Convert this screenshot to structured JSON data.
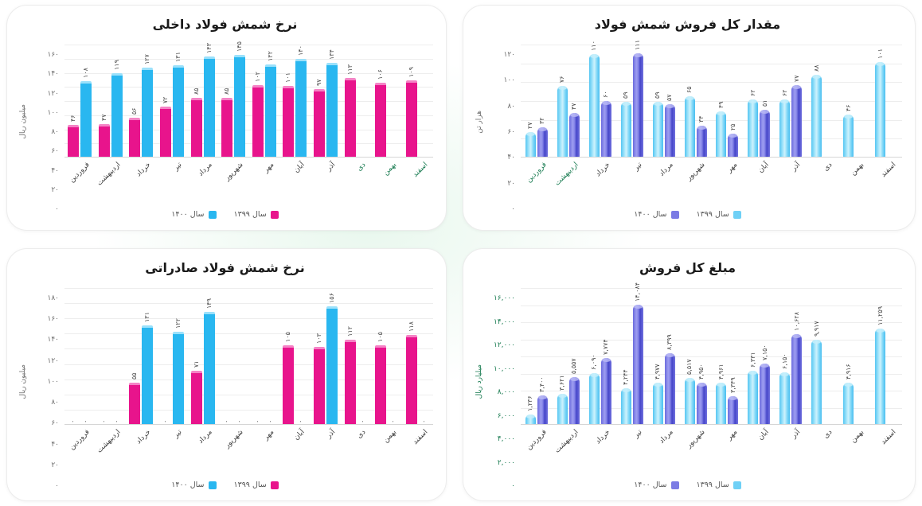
{
  "chart_data": [
    {
      "type": "bar",
      "title": "نرخ شمش فولاد داخلی",
      "ylabel": "میلیون ریال",
      "ylabel_color": "#6d6d6d",
      "tick_color": "#6d6d6d",
      "ylim": [
        0,
        160
      ],
      "y_ticks": [
        "۱۶۰",
        "۱۴۰",
        "۱۲۰",
        "۱۰۰",
        "۸۰",
        "۶۰",
        "۴۰",
        "۲۰",
        "۰"
      ],
      "grid": true,
      "legend_position": "bottom",
      "categories": [
        "فروردین",
        "اردیبهشت",
        "خرداد",
        "تیر",
        "مرداد",
        "شهریور",
        "مهر",
        "آبان",
        "آذر",
        "دی",
        "بهمن",
        "اسفند"
      ],
      "green_category_indices": [
        9,
        10,
        11
      ],
      "series": [
        {
          "name": "سال ۱۳۹۹",
          "color": "#e8148c",
          "style_key": "pink",
          "values": [
            46,
            47,
            56,
            72,
            85,
            85,
            102,
            101,
            97,
            113,
            106,
            109
          ],
          "labels": [
            "۴۶",
            "۴۷",
            "۵۶",
            "۷۲",
            "۸۵",
            "۸۵",
            "۱۰۲",
            "۱۰۱",
            "۹۷",
            "۱۱۳",
            "۱۰۶",
            "۱۰۹"
          ]
        },
        {
          "name": "سال ۱۴۰۰",
          "color": "#29b7f0",
          "style_key": "cyan",
          "values": [
            108,
            119,
            127,
            131,
            143,
            145,
            132,
            140,
            134,
            null,
            null,
            null
          ],
          "labels": [
            "۱۰۸",
            "۱۱۹",
            "۱۲۷",
            "۱۳۱",
            "۱۴۳",
            "۱۴۵",
            "۱۳۲",
            "۱۴۰",
            "۱۳۴",
            null,
            null,
            null
          ]
        }
      ]
    },
    {
      "type": "bar",
      "title": "مقدار کل فروش شمش فولاد",
      "ylabel": "هزار تن",
      "ylabel_color": "#6d6d6d",
      "tick_color": "#6d6d6d",
      "ylim": [
        0,
        120
      ],
      "y_ticks": [
        "۱۲۰",
        "۱۰۰",
        "۸۰",
        "۶۰",
        "۴۰",
        "۲۰",
        "۰"
      ],
      "grid": true,
      "legend_position": "bottom",
      "categories": [
        "فروردین",
        "اردیبهشت",
        "خرداد",
        "تیر",
        "مرداد",
        "شهریور",
        "مهر",
        "آبان",
        "آذر",
        "دی",
        "بهمن",
        "اسفند"
      ],
      "green_category_indices": [
        0,
        1
      ],
      "series": [
        {
          "name": "سال ۱۳۹۹",
          "color": "#6fd0f6",
          "style_key": "sky",
          "values": [
            27,
            76,
            110,
            59,
            59,
            65,
            49,
            62,
            62,
            88,
            46,
            101
          ],
          "labels": [
            "۲۷",
            "۷۶",
            "۱۱۰",
            "۵۹",
            "۵۹",
            "۶۵",
            "۴۹",
            "۶۲",
            "۶۲",
            "۸۸",
            "۴۶",
            "۱۰۱"
          ]
        },
        {
          "name": "سال ۱۴۰۰",
          "color": "#7b7be4",
          "style_key": "violet",
          "values": [
            32,
            47,
            60,
            111,
            57,
            34,
            25,
            51,
            77,
            null,
            null,
            null
          ],
          "labels": [
            "۳۲",
            "۴۷",
            "۶۰",
            "۱۱۱",
            "۵۷",
            "۳۴",
            "۲۵",
            "۵۱",
            "۷۷",
            null,
            null,
            null
          ]
        }
      ]
    },
    {
      "type": "bar",
      "title": "نرخ شمش فولاد صادراتی",
      "ylabel": "میلیون ریال",
      "ylabel_color": "#6d6d6d",
      "tick_color": "#6d6d6d",
      "ylim": [
        0,
        180
      ],
      "y_ticks": [
        "۱۸۰",
        "۱۶۰",
        "۱۴۰",
        "۱۲۰",
        "۱۰۰",
        "۸۰",
        "۶۰",
        "۴۰",
        "۲۰",
        "۰"
      ],
      "grid": true,
      "legend_position": "bottom",
      "categories": [
        "فروردین",
        "اردیبهشت",
        "خرداد",
        "تیر",
        "مرداد",
        "شهریور",
        "مهر",
        "آبان",
        "آذر",
        "دی",
        "بهمن",
        "اسفند"
      ],
      "green_category_indices": [],
      "series": [
        {
          "name": "سال ۱۳۹۹",
          "color": "#e8148c",
          "style_key": "pink",
          "values": [
            0,
            0,
            55,
            0,
            71,
            0,
            0,
            105,
            103,
            112,
            105,
            118
          ],
          "labels": [
            "۰",
            "۰",
            "۵۵",
            "۰",
            "۷۱",
            "۰",
            "۰",
            "۱۰۵",
            "۱۰۳",
            "۱۱۲",
            "۱۰۵",
            "۱۱۸"
          ]
        },
        {
          "name": "سال ۱۴۰۰",
          "color": "#29b7f0",
          "style_key": "cyan",
          "values": [
            0,
            0,
            131,
            122,
            149,
            0,
            0,
            0,
            156,
            0,
            0,
            0
          ],
          "labels": [
            "۰",
            "۰",
            "۱۳۱",
            "۱۲۲",
            "۱۴۹",
            "۰",
            "۰",
            "۰",
            "۱۵۶",
            "۰",
            "۰",
            "۰"
          ]
        }
      ]
    },
    {
      "type": "bar",
      "title": "مبلغ کل فروش",
      "ylabel": "میلیارد ریال",
      "ylabel_color": "#15794e",
      "tick_color": "#15794e",
      "ylim": [
        0,
        16000
      ],
      "y_ticks": [
        "۱۶,۰۰۰",
        "۱۴,۰۰۰",
        "۱۲,۰۰۰",
        "۱۰,۰۰۰",
        "۸,۰۰۰",
        "۶,۰۰۰",
        "۴,۰۰۰",
        "۲,۰۰۰",
        "۰"
      ],
      "grid": true,
      "legend_position": "bottom",
      "categories": [
        "فروردین",
        "اردیبهشت",
        "خرداد",
        "تیر",
        "مرداد",
        "شهریور",
        "مهر",
        "آبان",
        "آذر",
        "دی",
        "بهمن",
        "اسفند"
      ],
      "green_category_indices": [],
      "series": [
        {
          "name": "سال ۱۳۹۹",
          "color": "#6fd0f6",
          "style_key": "sky",
          "values": [
            1236,
            3621,
            6090,
            4244,
            4977,
            5517,
            4961,
            6331,
            6150,
            9917,
            4916,
            11259
          ],
          "labels": [
            "۱,۲۳۶",
            "۳,۶۲۱",
            "۶,۰۹۰",
            "۴,۲۴۴",
            "۴,۹۷۷",
            "۵,۵۱۷",
            "۴,۹۶۱",
            "۶,۳۳۱",
            "۶,۱۵۰",
            "۹,۹۱۷",
            "۴,۹۱۶",
            "۱۱,۲۵۹"
          ]
        },
        {
          "name": "سال ۱۴۰۰",
          "color": "#7b7be4",
          "style_key": "violet",
          "values": [
            3400,
            5557,
            7774,
            14084,
            8399,
            4950,
            3349,
            7150,
            10628,
            null,
            null,
            null
          ],
          "labels": [
            "۳,۴۰۰",
            "۵,۵۵۷",
            "۷,۷۷۴",
            "۱۴,۰۸۴",
            "۸,۳۹۹",
            "۴,۹۵۰",
            "۳,۳۴۹",
            "۷,۱۵۰",
            "۱۰,۶۲۸",
            null,
            null,
            null
          ]
        }
      ]
    }
  ]
}
